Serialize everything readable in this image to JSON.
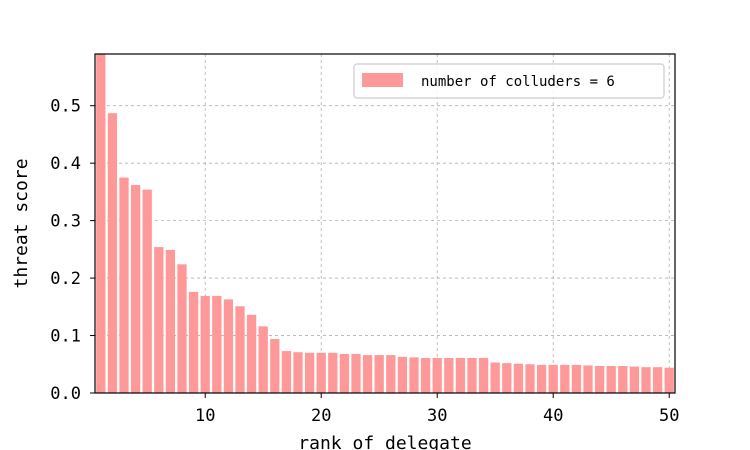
{
  "chart_data": {
    "type": "bar",
    "title": "",
    "xlabel": "rank of delegate",
    "ylabel": "threat score",
    "xlim": [
      0.5,
      50.5
    ],
    "ylim": [
      0,
      0.59
    ],
    "xticks": [
      10,
      20,
      30,
      40,
      50
    ],
    "yticks": [
      0.0,
      0.1,
      0.2,
      0.3,
      0.4,
      0.5
    ],
    "xtick_labels": [
      "10",
      "20",
      "30",
      "40",
      "50"
    ],
    "ytick_labels": [
      "0.0",
      "0.1",
      "0.2",
      "0.3",
      "0.4",
      "0.5"
    ],
    "grid": true,
    "legend_position": "top-right",
    "bar_color": "#ff9999",
    "series": [
      {
        "name": "number of colluders = 6",
        "x": [
          1,
          2,
          3,
          4,
          5,
          6,
          7,
          8,
          9,
          10,
          11,
          12,
          13,
          14,
          15,
          16,
          17,
          18,
          19,
          20,
          21,
          22,
          23,
          24,
          25,
          26,
          27,
          28,
          29,
          30,
          31,
          32,
          33,
          34,
          35,
          36,
          37,
          38,
          39,
          40,
          41,
          42,
          43,
          44,
          45,
          46,
          47,
          48,
          49,
          50
        ],
        "values": [
          0.59,
          0.487,
          0.375,
          0.362,
          0.354,
          0.254,
          0.249,
          0.224,
          0.176,
          0.169,
          0.169,
          0.163,
          0.151,
          0.136,
          0.116,
          0.094,
          0.073,
          0.071,
          0.07,
          0.07,
          0.07,
          0.068,
          0.068,
          0.066,
          0.066,
          0.066,
          0.063,
          0.062,
          0.061,
          0.061,
          0.061,
          0.061,
          0.061,
          0.061,
          0.053,
          0.052,
          0.051,
          0.05,
          0.049,
          0.049,
          0.049,
          0.049,
          0.048,
          0.047,
          0.047,
          0.047,
          0.046,
          0.045,
          0.045,
          0.044
        ]
      }
    ]
  }
}
